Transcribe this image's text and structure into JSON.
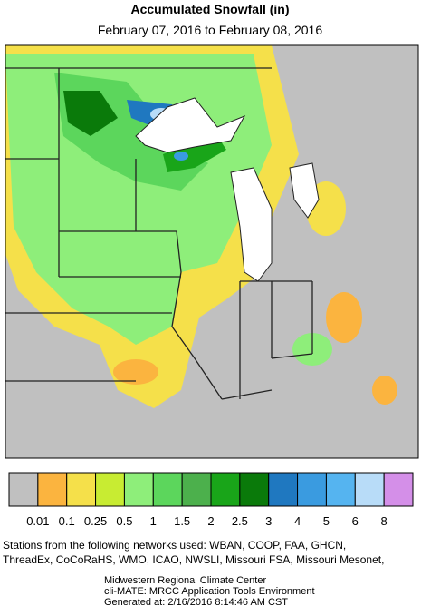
{
  "title": "Accumulated Snowfall (in)",
  "subtitle": "February 07, 2016 to February 08, 2016",
  "legend": {
    "colors": [
      "#c0c0c0",
      "#fbb43f",
      "#f5e04a",
      "#c8ec32",
      "#8eee7a",
      "#5cd65c",
      "#4cb04c",
      "#19a519",
      "#0a7a0a",
      "#1f78c0",
      "#3a9be0",
      "#55b4f0",
      "#b8dcf8",
      "#d48fe8"
    ],
    "labels": [
      0.01,
      0.1,
      0.25,
      0.5,
      1,
      1.5,
      2,
      2.5,
      3,
      4,
      5,
      6,
      8
    ]
  },
  "footer": {
    "stations": [
      "Stations from the following networks used: WBAN, COOP, FAA, GHCN,",
      "ThreadEx, CoCoRaHS, WMO, ICAO, NWSLI, Missouri FSA, Missouri Mesonet,"
    ],
    "credits": [
      "Midwestern Regional Climate Center",
      "cli-MATE: MRCC Application Tools Environment",
      "Generated at: 2/16/2016 8:14:46 AM CST"
    ]
  }
}
